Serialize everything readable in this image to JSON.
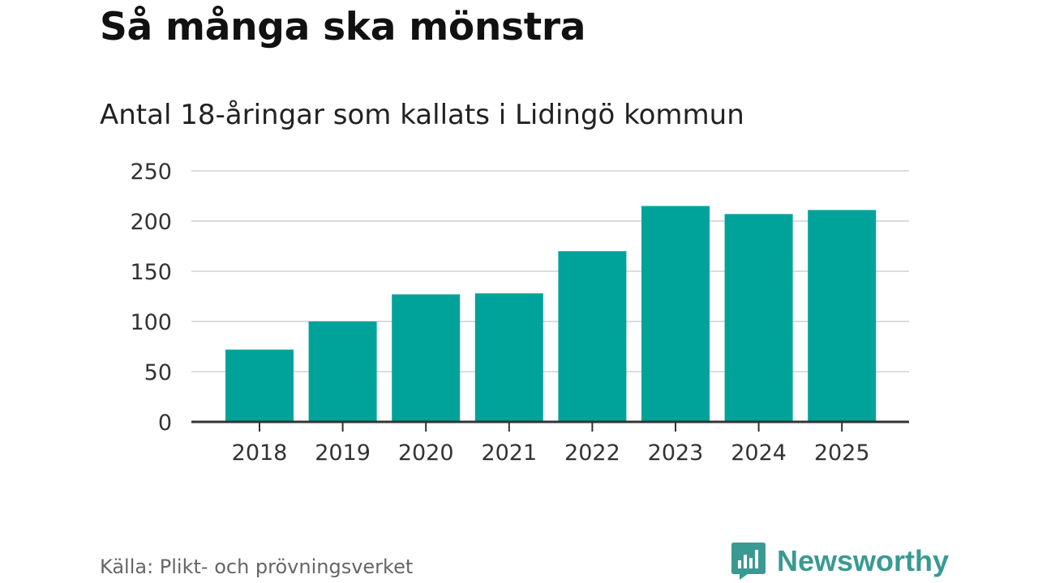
{
  "header": {
    "title": "Så många ska mönstra",
    "subtitle": "Antal 18-åringar som kallats i Lidingö kommun"
  },
  "chart_data": {
    "type": "bar",
    "title": "Så många ska mönstra",
    "subtitle": "Antal 18-åringar som kallats i Lidingö kommun",
    "categories": [
      "2018",
      "2019",
      "2020",
      "2021",
      "2022",
      "2023",
      "2024",
      "2025"
    ],
    "values": [
      72,
      100,
      127,
      128,
      170,
      215,
      207,
      211
    ],
    "xlabel": "",
    "ylabel": "",
    "ylim": [
      0,
      250
    ],
    "yticks": [
      0,
      50,
      100,
      150,
      200,
      250
    ],
    "grid": true,
    "bar_color": "#00a39a"
  },
  "footer": {
    "source": "Källa: Plikt- och prövningsverket",
    "brand": "Newsworthy",
    "brand_color": "#3a9a92"
  }
}
